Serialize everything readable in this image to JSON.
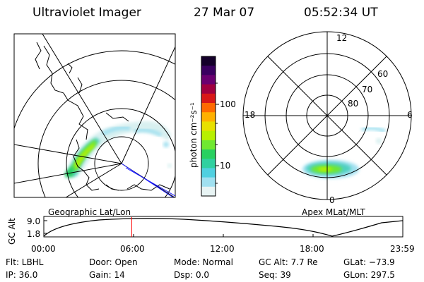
{
  "header": {
    "title": "Ultraviolet Imager",
    "date": "27 Mar 07",
    "time": "05:52:34 UT"
  },
  "left_panel": {
    "label": "Geographic Lat/Lon",
    "track_color": "#1a1aff"
  },
  "colorbar": {
    "unit_label": "photon cm⁻²s⁻¹",
    "tick_100": "100",
    "tick_10": "10",
    "colors": [
      "#14002a",
      "#3a0060",
      "#6a0070",
      "#a00040",
      "#d81818",
      "#ff6a00",
      "#ffb000",
      "#e8e000",
      "#b8f000",
      "#70e830",
      "#28d060",
      "#30d0a0",
      "#50d0e0",
      "#a0e0f0",
      "#e8f4f4"
    ]
  },
  "right_panel": {
    "label": "Apex MLat/MLT",
    "mlt_12": "12",
    "mlt_18": "18",
    "mlt_6": "6",
    "mlt_0": "0",
    "lat_60": "60",
    "lat_70": "70",
    "lat_80": "80"
  },
  "altitude_plot": {
    "ylabel": "GC Alt",
    "ytick_top": "9.0",
    "ytick_bottom": "1.8",
    "xticks": [
      "00:00",
      "06:00",
      "12:00",
      "18:00",
      "23:59"
    ],
    "marker_color": "#ff0000",
    "current_time_hours": 5.875
  },
  "footer": {
    "filter": "Flt: LBHL",
    "ip": "IP: 36.0",
    "door": "Door: Open",
    "gain": "Gain: 14",
    "mode": "Mode: Normal",
    "dsp": "Dsp:     0.0",
    "gc_alt": "GC Alt: 7.7 Re",
    "seq": "Seq: 39",
    "glat": "GLat: −73.9",
    "glon": "GLon: 297.5"
  }
}
